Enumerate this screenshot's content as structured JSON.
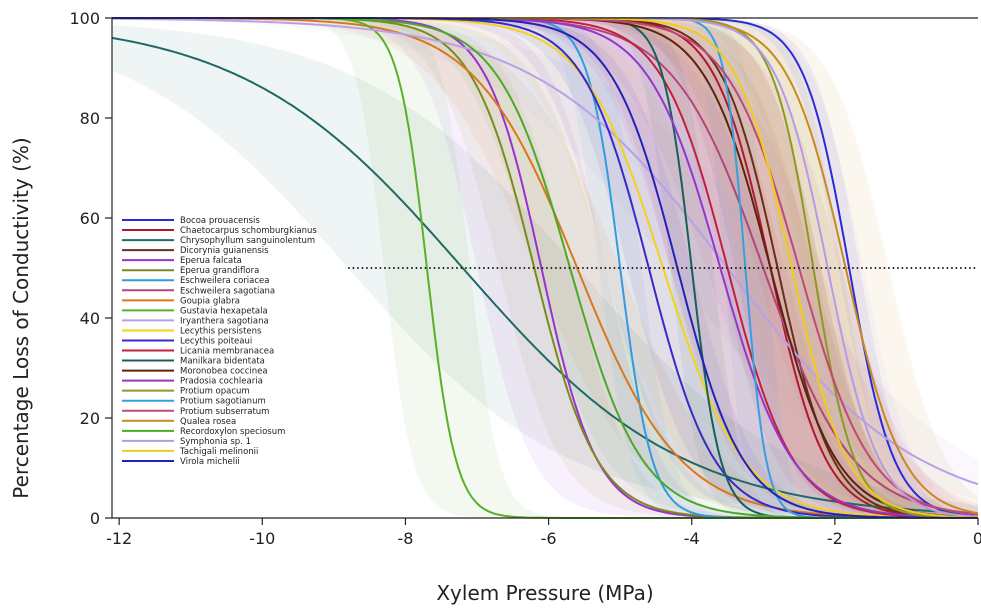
{
  "chart_data": {
    "type": "line",
    "title": "",
    "xlabel": "Xylem Pressure (MPa)",
    "ylabel": "Percentage Loss of Conductivity (%)",
    "xlim": [
      -12.1,
      0
    ],
    "ylim": [
      0,
      100
    ],
    "x_ticks": [
      -12,
      -10,
      -8,
      -6,
      -4,
      -2,
      0
    ],
    "y_ticks": [
      0,
      20,
      40,
      60,
      80,
      100
    ],
    "x_tick_labels": [
      "-12",
      "-10",
      "-8",
      "-6",
      "-4",
      "-2",
      "0"
    ],
    "y_tick_labels": [
      "0",
      "20",
      "40",
      "60",
      "80",
      "100"
    ],
    "reference_line": {
      "y": 50,
      "x_from": -8.8,
      "x_to": 0,
      "style": "dotted"
    },
    "grid": false,
    "legend_position": "lower-left",
    "series": [
      {
        "name": "Bocoa prouacensis",
        "color": "#2b2bd6",
        "p50": -1.8,
        "slope": 3.2,
        "band": 0.15
      },
      {
        "name": "Chaetocarpus schomburgkianus",
        "color": "#b0182c",
        "p50": -2.9,
        "slope": 2.6,
        "band": 0.7
      },
      {
        "name": "Chrysophyllum sanguinolentum",
        "color": "#1e6a66",
        "p50": -7.2,
        "slope": 0.65,
        "band": 1.6
      },
      {
        "name": "Dicorynia guianensis",
        "color": "#6b2e14",
        "p50": -2.8,
        "slope": 2.6,
        "band": 0.6
      },
      {
        "name": "Eperua falcata",
        "color": "#9b30d0",
        "p50": -6.1,
        "slope": 2.6,
        "band": 0.9
      },
      {
        "name": "Eperua grandiflora",
        "color": "#7a8a1e",
        "p50": -6.2,
        "slope": 2.3,
        "band": 0.5
      },
      {
        "name": "Eschweilera coriacea",
        "color": "#2f9be0",
        "p50": -5.0,
        "slope": 4.5,
        "band": 0.3
      },
      {
        "name": "Eschweilera sagotiana",
        "color": "#b3457a",
        "p50": -3.0,
        "slope": 1.6,
        "band": 0.8
      },
      {
        "name": "Goupia glabra",
        "color": "#d8781c",
        "p50": -5.6,
        "slope": 1.4,
        "band": 0.6
      },
      {
        "name": "Gustavia hexapetala",
        "color": "#5ab02a",
        "p50": -7.7,
        "slope": 5.0,
        "band": 0.6
      },
      {
        "name": "Iryanthera sagotiana",
        "color": "#b9a0e6",
        "p50": -3.5,
        "slope": 0.75,
        "band": 0.8
      },
      {
        "name": "Lecythis persistens",
        "color": "#f2d21a",
        "p50": -4.4,
        "slope": 1.8,
        "band": 0.8
      },
      {
        "name": "Lecythis poiteaui",
        "color": "#3a28c8",
        "p50": -4.6,
        "slope": 2.2,
        "band": 0.6
      },
      {
        "name": "Licania membranacea",
        "color": "#c21f3a",
        "p50": -3.5,
        "slope": 2.2,
        "band": 0.8
      },
      {
        "name": "Manilkara bidentata",
        "color": "#16605a",
        "p50": -4.0,
        "slope": 5.0,
        "band": 0.3
      },
      {
        "name": "Moronobea coccinea",
        "color": "#5a2410",
        "p50": -2.9,
        "slope": 2.2,
        "band": 0.6
      },
      {
        "name": "Pradosia cochlearia",
        "color": "#9636c6",
        "p50": -3.6,
        "slope": 2.0,
        "band": 0.7
      },
      {
        "name": "Protium opacum",
        "color": "#8a9a22",
        "p50": -2.3,
        "slope": 3.5,
        "band": 0.4
      },
      {
        "name": "Protium sagotianum",
        "color": "#34a0e0",
        "p50": -3.25,
        "slope": 7.0,
        "band": 0.3
      },
      {
        "name": "Protium subserratum",
        "color": "#c04878",
        "p50": -2.5,
        "slope": 2.0,
        "band": 0.6
      },
      {
        "name": "Qualea rosea",
        "color": "#c98a1a",
        "p50": -1.85,
        "slope": 2.5,
        "band": 0.6
      },
      {
        "name": "Recordoxylon speciosum",
        "color": "#4ca828",
        "p50": -5.7,
        "slope": 2.0,
        "band": 0.5
      },
      {
        "name": "Symphonia sp. 1",
        "color": "#b59ae8",
        "p50": -2.1,
        "slope": 2.8,
        "band": 0.5
      },
      {
        "name": "Tachigali melinonii",
        "color": "#f0cc18",
        "p50": -2.6,
        "slope": 2.6,
        "band": 0.7
      },
      {
        "name": "Virola michelii",
        "color": "#2222b8",
        "p50": -4.2,
        "slope": 2.2,
        "band": 0.7
      }
    ]
  }
}
